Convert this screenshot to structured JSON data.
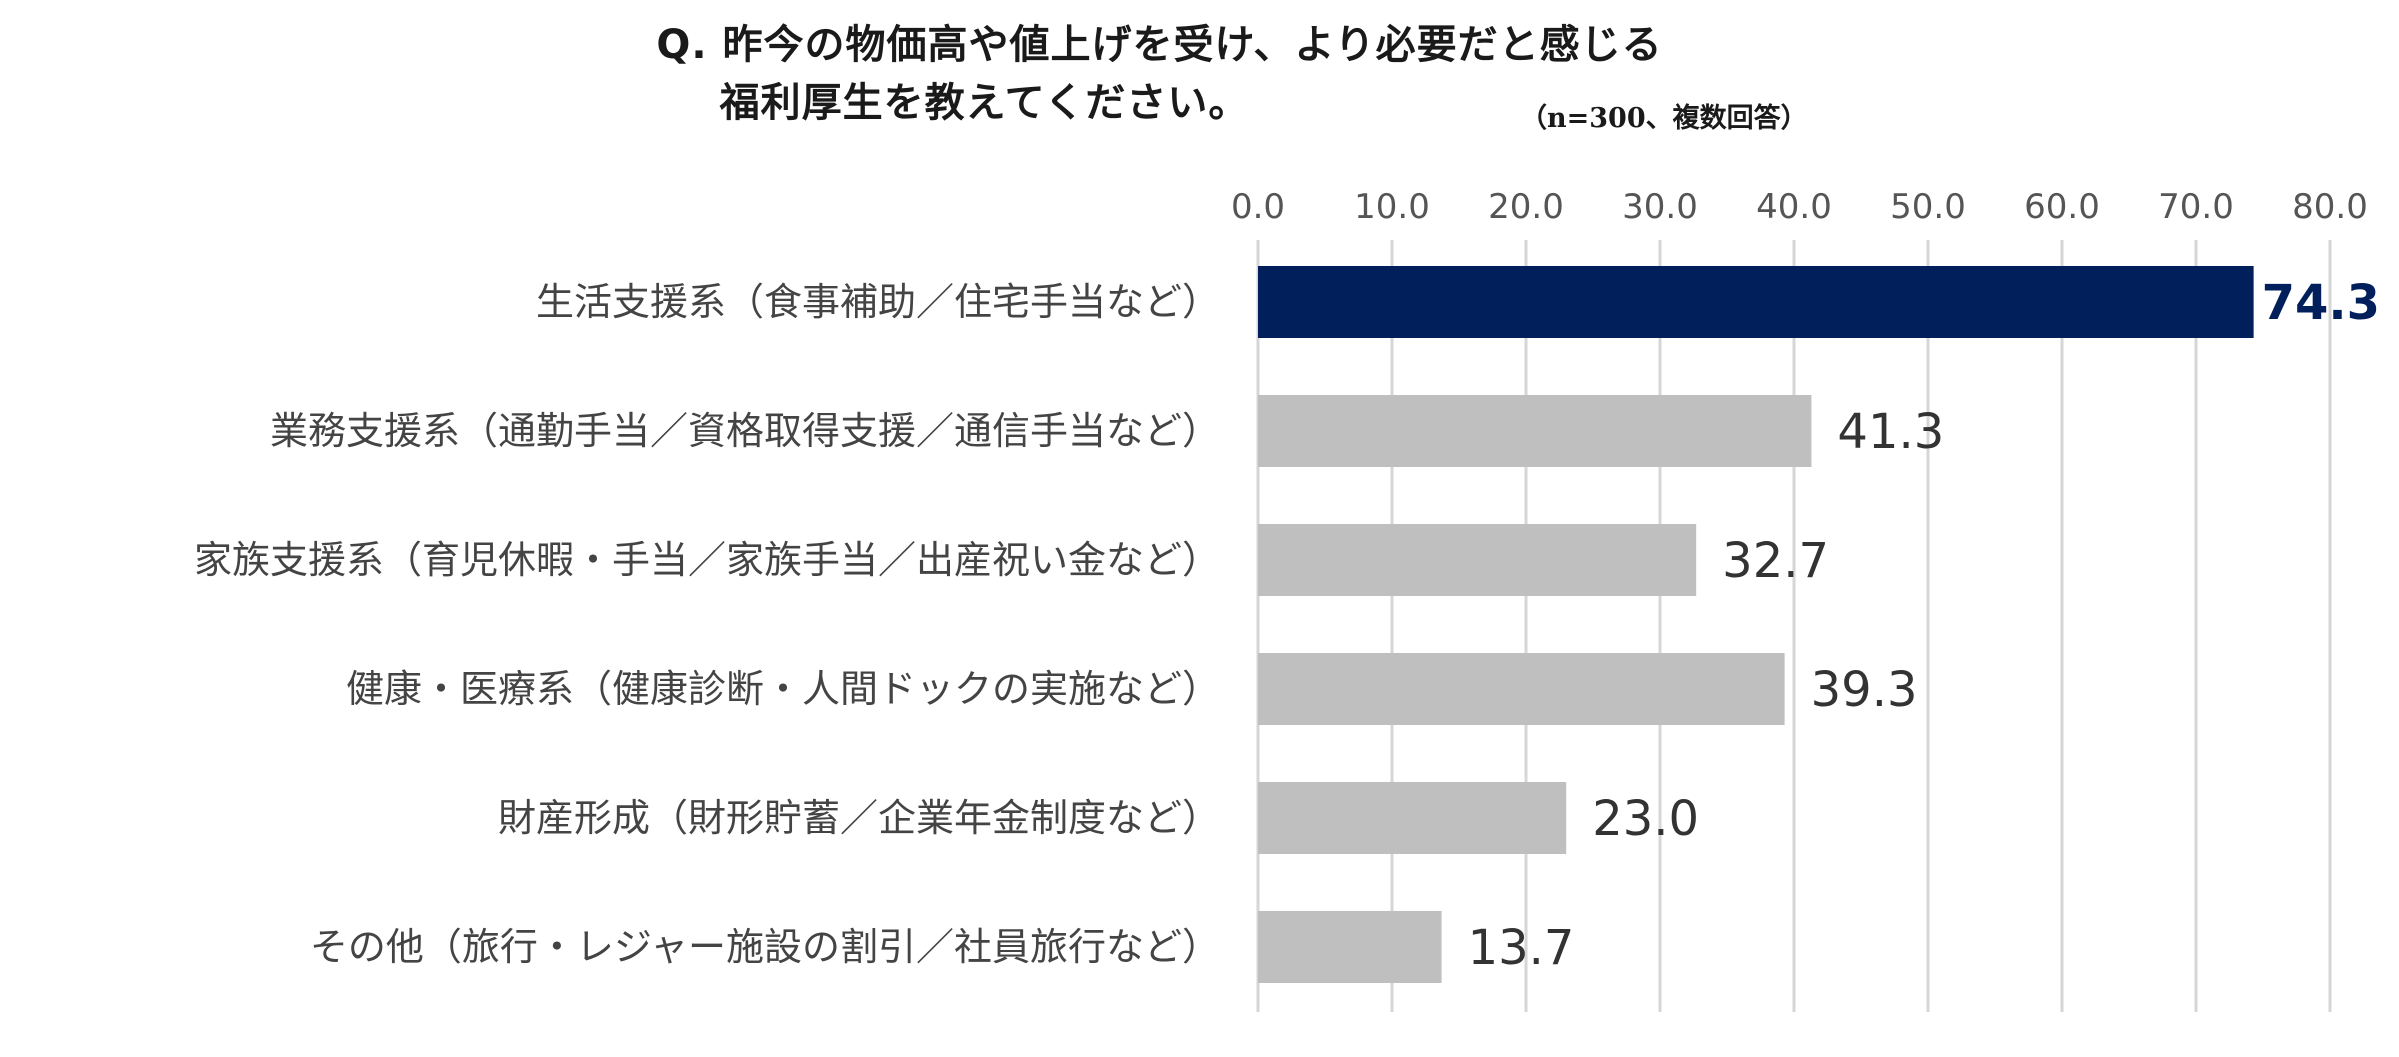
{
  "title": {
    "line1": "Q. 昨今の物価高や値上げを受け、より必要だと感じる",
    "line2": "福利厚生を教えてください。",
    "note": "（n=300、複数回答）"
  },
  "chart_data": {
    "type": "bar",
    "orientation": "horizontal",
    "categories": [
      "生活支援系（食事補助／住宅手当など）",
      "業務支援系（通勤手当／資格取得支援／通信手当など）",
      "家族支援系（育児休暇・手当／家族手当／出産祝い金など）",
      "健康・医療系（健康診断・人間ドックの実施など）",
      "財産形成（財形貯蓄／企業年金制度など）",
      "その他（旅行・レジャー施設の割引／社員旅行など）"
    ],
    "values": [
      74.3,
      41.3,
      32.7,
      39.3,
      23.0,
      13.7
    ],
    "value_labels": [
      "74.3",
      "41.3",
      "32.7",
      "39.3",
      "23.0",
      "13.7"
    ],
    "xlim": [
      0,
      80
    ],
    "ticks": [
      "0.0",
      "10.0",
      "20.0",
      "30.0",
      "40.0",
      "50.0",
      "60.0",
      "70.0",
      "80.0"
    ],
    "axis_position": "top",
    "grid": true,
    "highlight_index": 0,
    "colors": {
      "highlight": "#001f5b",
      "default": "#bfbfbf"
    }
  }
}
